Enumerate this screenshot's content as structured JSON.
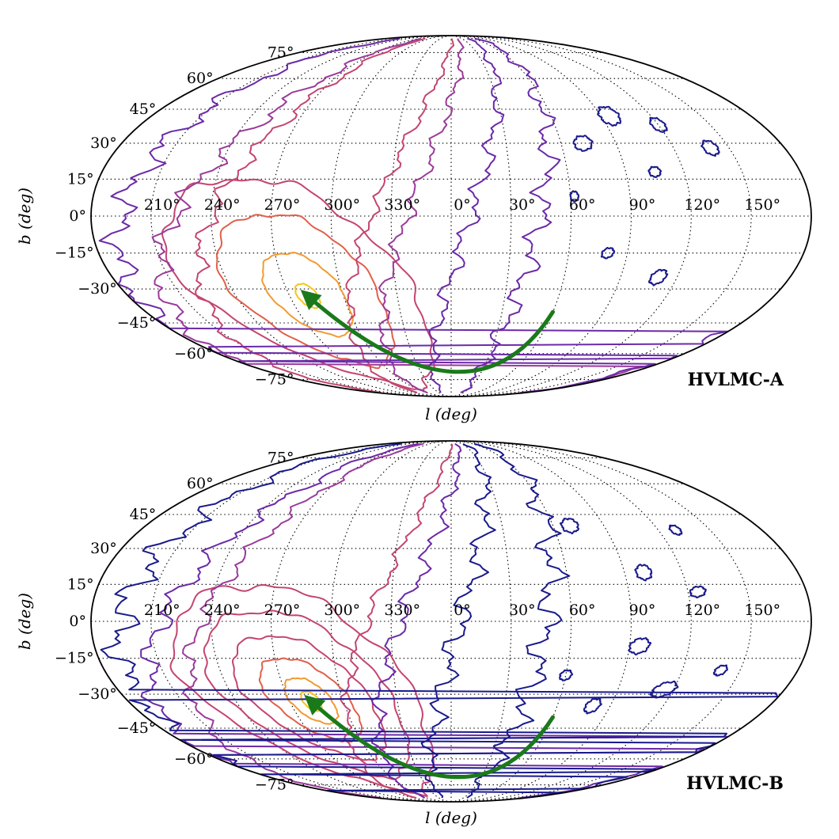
{
  "chart_data": [
    {
      "type": "contour",
      "projection": "mollweide",
      "panel_label": "HVLMC-A",
      "xlabel": "l (deg)",
      "ylabel": "b (deg)",
      "lon_ticks": [
        "210°",
        "240°",
        "270°",
        "300°",
        "330°",
        "0°",
        "30°",
        "60°",
        "90°",
        "120°",
        "150°"
      ],
      "lat_ticks": [
        "75°",
        "60°",
        "45°",
        "30°",
        "15°",
        "0°",
        "−15°",
        "−30°",
        "−45°",
        "−60°",
        "−75°"
      ],
      "grid": true,
      "peak": {
        "l": 280,
        "b": -33
      },
      "orbit_arrow": {
        "color": "#1a7a1a",
        "from": {
          "l": 60,
          "b": -40
        },
        "via": {
          "l": 0,
          "b": -70
        },
        "to": {
          "l": 280,
          "b": -33
        }
      },
      "contour_colors": [
        "#f5c518",
        "#f29a33",
        "#e0604a",
        "#c44570",
        "#9a3a9a",
        "#6b2aa8",
        "#1a1a8c"
      ],
      "series": [
        {
          "level": 1,
          "color": "#f5c518",
          "description": "innermost"
        },
        {
          "level": 2,
          "color": "#f29a33"
        },
        {
          "level": 3,
          "color": "#e0604a"
        },
        {
          "level": 4,
          "color": "#c44570"
        },
        {
          "level": 5,
          "color": "#9a3a9a"
        },
        {
          "level": 6,
          "color": "#6b2aa8"
        },
        {
          "level": 7,
          "color": "#1a1a8c",
          "description": "outermost"
        }
      ]
    },
    {
      "type": "contour",
      "projection": "mollweide",
      "panel_label": "HVLMC-B",
      "xlabel": "l (deg)",
      "ylabel": "b (deg)",
      "lon_ticks": [
        "210°",
        "240°",
        "270°",
        "300°",
        "330°",
        "0°",
        "30°",
        "60°",
        "90°",
        "120°",
        "150°"
      ],
      "lat_ticks": [
        "75°",
        "60°",
        "45°",
        "30°",
        "15°",
        "0°",
        "−15°",
        "−30°",
        "−45°",
        "−60°",
        "−75°"
      ],
      "grid": true,
      "peak": {
        "l": 282,
        "b": -33
      },
      "orbit_arrow": {
        "color": "#1a7a1a",
        "from": {
          "l": 60,
          "b": -40
        },
        "via": {
          "l": 0,
          "b": -70
        },
        "to": {
          "l": 282,
          "b": -33
        }
      },
      "contour_colors": [
        "#f5c518",
        "#f29a33",
        "#e0604a",
        "#c44570",
        "#9a3a9a",
        "#6b2aa8",
        "#1a1a8c"
      ],
      "series": [
        {
          "level": 1,
          "color": "#f5c518"
        },
        {
          "level": 2,
          "color": "#f29a33"
        },
        {
          "level": 3,
          "color": "#e0604a"
        },
        {
          "level": 4,
          "color": "#c44570"
        },
        {
          "level": 5,
          "color": "#9a3a9a"
        },
        {
          "level": 6,
          "color": "#6b2aa8"
        },
        {
          "level": 7,
          "color": "#1a1a8c"
        }
      ]
    }
  ]
}
